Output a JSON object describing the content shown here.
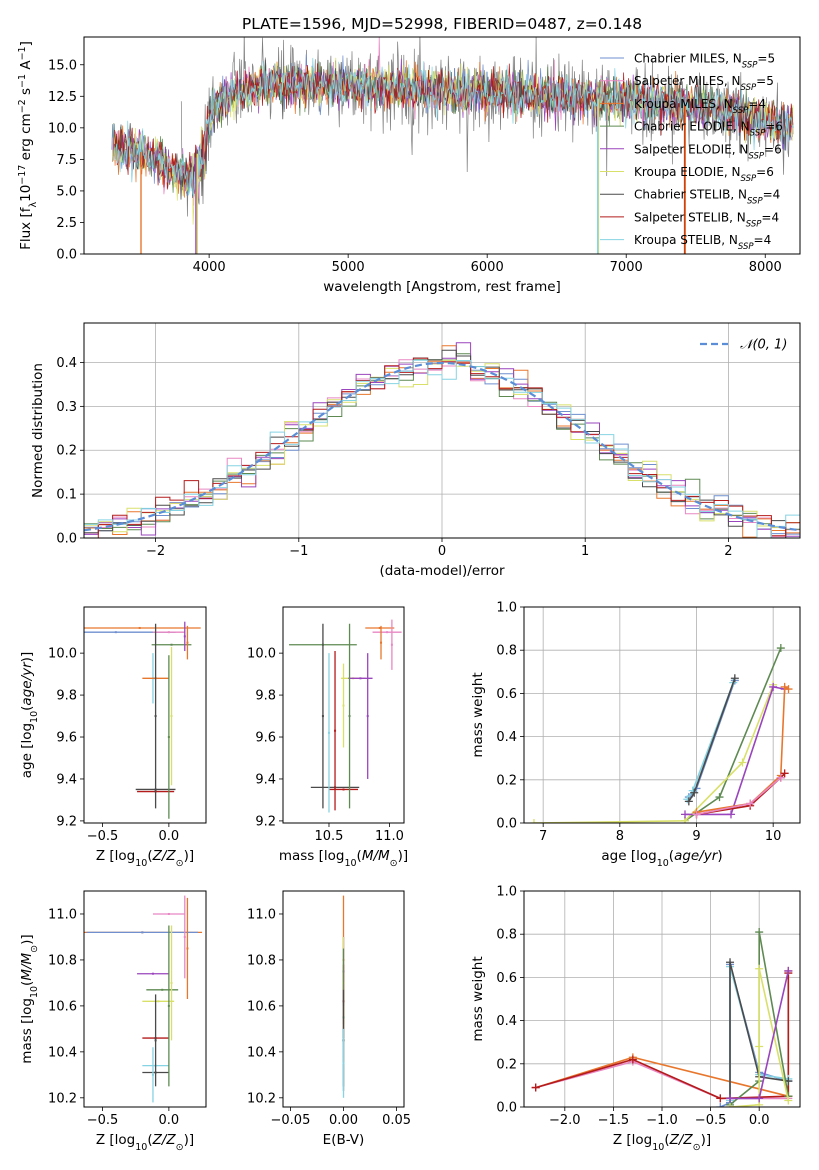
{
  "colors": {
    "Chabrier MILES": "#6f8fcf",
    "Salpeter MILES": "#e887c3",
    "Kroupa MILES": "#e8772e",
    "Chabrier ELODIE": "#5e8a52",
    "Salpeter ELODIE": "#9a44bd",
    "Kroupa ELODIE": "#d9e06a",
    "Chabrier STELIB": "#4a4a4a",
    "Salpeter STELIB": "#b41c1c",
    "Kroupa STELIB": "#86d3e3",
    "data": "#7f7f7f",
    "gaussian": "#5b8ed6"
  },
  "chart_data": [
    {
      "id": "spectrum",
      "type": "line",
      "title": "PLATE=1596, MJD=52998, FIBERID=0487, z=0.148",
      "xlabel": "wavelength [Angstrom, rest frame]",
      "ylabel": "Flux [f",
      "xlim": [
        3100,
        8250
      ],
      "ylim": [
        0,
        17.2
      ],
      "xticks": [
        "4000",
        "5000",
        "6000",
        "7000",
        "8000"
      ],
      "yticks": [
        "0.0",
        "2.5",
        "5.0",
        "7.5",
        "10.0",
        "12.5",
        "15.0"
      ],
      "legend_position": "right",
      "legend": [
        {
          "model": "Chabrier MILES",
          "nssp": "5"
        },
        {
          "model": "Salpeter MILES",
          "nssp": "5"
        },
        {
          "model": "Kroupa MILES",
          "nssp": "4"
        },
        {
          "model": "Chabrier ELODIE",
          "nssp": "6"
        },
        {
          "model": "Salpeter ELODIE",
          "nssp": "6"
        },
        {
          "model": "Kroupa ELODIE",
          "nssp": "6"
        },
        {
          "model": "Chabrier STELIB",
          "nssp": "4"
        },
        {
          "model": "Salpeter STELIB",
          "nssp": "4"
        },
        {
          "model": "Kroupa STELIB",
          "nssp": "4"
        }
      ],
      "continuum": [
        [
          3300,
          8.5
        ],
        [
          3550,
          8.0
        ],
        [
          3700,
          6.8
        ],
        [
          3850,
          6.0
        ],
        [
          3950,
          9.0
        ],
        [
          4050,
          12.0
        ],
        [
          4200,
          12.8
        ],
        [
          4400,
          13.5
        ],
        [
          4700,
          13.5
        ],
        [
          5000,
          13.4
        ],
        [
          5300,
          13.2
        ],
        [
          5600,
          13.0
        ],
        [
          5900,
          12.9
        ],
        [
          6200,
          12.7
        ],
        [
          6500,
          12.5
        ],
        [
          6800,
          12.3
        ],
        [
          7100,
          12.1
        ],
        [
          7400,
          11.8
        ],
        [
          7700,
          11.4
        ],
        [
          8000,
          10.6
        ],
        [
          8200,
          10.0
        ]
      ],
      "model_range": [
        3300,
        8200
      ],
      "data_range": [
        3800,
        8200
      ],
      "cutoff_lines": [
        {
          "model": "Kroupa MILES",
          "x": 3510
        },
        {
          "model": "Salpeter ELODIE",
          "x": 3905
        },
        {
          "model": "Kroupa ELODIE",
          "x": 3915
        },
        {
          "model": "Kroupa ELODIE",
          "x": 6800
        },
        {
          "model": "Kroupa STELIB",
          "x": 6795
        },
        {
          "model": "Salpeter STELIB",
          "x": 7420
        },
        {
          "model": "Kroupa MILES",
          "x": 7425
        }
      ]
    },
    {
      "id": "residuals",
      "type": "line",
      "xlabel": "(data-model)/error",
      "ylabel": "Normed distribution",
      "xlim": [
        -2.5,
        2.5
      ],
      "ylim": [
        0,
        0.49
      ],
      "xticks": [
        "−2",
        "−1",
        "0",
        "1",
        "2"
      ],
      "yticks": [
        "0.0",
        "0.1",
        "0.2",
        "0.3",
        "0.4"
      ],
      "grid": true,
      "legend_position": "top-right",
      "gaussian_label": "𝒩(0, 1)",
      "bins": {
        "start": -2.5,
        "width": 0.1,
        "count": 50
      }
    },
    {
      "id": "age-vs-z",
      "type": "scatter",
      "xlabel": "Z [log",
      "ylabel": "age  [log",
      "xlim": [
        -0.64,
        0.28
      ],
      "ylim": [
        9.19,
        10.22
      ],
      "xticks": [
        "−0.5",
        "0.0"
      ],
      "yticks": [
        "9.2",
        "9.4",
        "9.6",
        "9.8",
        "10.0"
      ],
      "points": [
        {
          "model": "Chabrier MILES",
          "x": -0.4,
          "y": 10.1,
          "xerr": 0.45
        },
        {
          "model": "Salpeter MILES",
          "x": 0.0,
          "y": 10.1,
          "xerr": 0.12
        },
        {
          "model": "Kroupa MILES",
          "x": -0.22,
          "y": 10.12,
          "xerr": 0.46
        },
        {
          "model": "Chabrier ELODIE",
          "x": 0.02,
          "y": 10.04,
          "xerr": 0.15
        },
        {
          "model": "Salpeter ELODIE",
          "x": 0.12,
          "y": 10.08,
          "yerr": 0.07
        },
        {
          "model": "Kroupa ELODIE",
          "x": 0.02,
          "y": 9.7,
          "yerr": 0.33
        },
        {
          "model": "Chabrier STELIB",
          "x": -0.1,
          "y": 9.35,
          "xerr": 0.15
        },
        {
          "model": "Salpeter STELIB",
          "x": -0.1,
          "y": 9.34,
          "xerr": 0.14
        },
        {
          "model": "Kroupa STELIB",
          "x": -0.12,
          "y": 9.88,
          "yerr": 0.12
        },
        {
          "model": "Kroupa MILES",
          "x": -0.1,
          "y": 9.88,
          "xerr": 0.1
        },
        {
          "model": "Kroupa MILES",
          "x": 0.14,
          "y": 10.05,
          "yerr": 0.08
        },
        {
          "model": "Chabrier ELODIE",
          "x": 0.0,
          "y": 9.6,
          "yerr": 0.39
        },
        {
          "model": "Chabrier STELIB",
          "x": -0.1,
          "y": 9.7,
          "yerr": 0.44
        }
      ]
    },
    {
      "id": "age-vs-mass",
      "type": "scatter",
      "xlabel": "mass [log",
      "ylabel": "",
      "xlim": [
        10.12,
        11.12
      ],
      "ylim": [
        9.19,
        10.22
      ],
      "xticks": [
        "10.5",
        "11.0"
      ],
      "yticks": [
        "9.2",
        "9.4",
        "9.6",
        "9.8",
        "10.0"
      ],
      "points": [
        {
          "model": "Chabrier ELODIE",
          "x": 10.45,
          "y": 10.04,
          "xerr": 0.28
        },
        {
          "model": "Kroupa MILES",
          "x": 10.92,
          "y": 10.12,
          "xerr": 0.12
        },
        {
          "model": "Salpeter MILES",
          "x": 10.98,
          "y": 10.1,
          "xerr": 0.12
        },
        {
          "model": "Kroupa MILES",
          "x": 10.93,
          "y": 10.05,
          "yerr": 0.08
        },
        {
          "model": "Salpeter MILES",
          "x": 11.02,
          "y": 10.04,
          "yerr": 0.12
        },
        {
          "model": "Kroupa ELODIE",
          "x": 10.7,
          "y": 9.88,
          "xerr": 0.1
        },
        {
          "model": "Salpeter ELODIE",
          "x": 10.76,
          "y": 9.88,
          "xerr": 0.1
        },
        {
          "model": "Salpeter ELODIE",
          "x": 10.82,
          "y": 9.7,
          "yerr": 0.3
        },
        {
          "model": "Kroupa ELODIE",
          "x": 10.62,
          "y": 9.75,
          "yerr": 0.2
        },
        {
          "model": "Chabrier STELIB",
          "x": 10.55,
          "y": 9.36,
          "xerr": 0.2
        },
        {
          "model": "Salpeter STELIB",
          "x": 10.62,
          "y": 9.35,
          "xerr": 0.12
        },
        {
          "model": "Salpeter STELIB",
          "x": 10.55,
          "y": 9.63,
          "yerr": 0.38
        },
        {
          "model": "Chabrier STELIB",
          "x": 10.45,
          "y": 9.7,
          "yerr": 0.44
        },
        {
          "model": "Kroupa STELIB",
          "x": 10.5,
          "y": 9.62,
          "yerr": 0.38
        },
        {
          "model": "Chabrier ELODIE",
          "x": 10.67,
          "y": 9.7,
          "yerr": 0.44
        }
      ]
    },
    {
      "id": "mass-weight-vs-age",
      "type": "line",
      "xlabel": "age  [log",
      "ylabel": "mass weight",
      "xlim": [
        6.75,
        10.35
      ],
      "ylim": [
        0,
        1
      ],
      "xticks": [
        "7",
        "8",
        "9",
        "10"
      ],
      "yticks": [
        "0.0",
        "0.2",
        "0.4",
        "0.6",
        "0.8",
        "1.0"
      ],
      "grid": true,
      "series": [
        {
          "model": "Chabrier MILES",
          "x": [
            8.9,
            9.0,
            9.5
          ],
          "y": [
            0.12,
            0.16,
            0.66
          ]
        },
        {
          "model": "Kroupa STELIB",
          "x": [
            8.88,
            8.95,
            9.48
          ],
          "y": [
            0.11,
            0.15,
            0.65
          ]
        },
        {
          "model": "Chabrier STELIB",
          "x": [
            8.9,
            8.97,
            9.5
          ],
          "y": [
            0.1,
            0.14,
            0.67
          ]
        },
        {
          "model": "Chabrier ELODIE",
          "x": [
            8.85,
            9.3,
            10.1
          ],
          "y": [
            0.01,
            0.12,
            0.81
          ]
        },
        {
          "model": "Kroupa ELODIE",
          "x": [
            6.88,
            8.85,
            9.6,
            10.0
          ],
          "y": [
            0.0,
            0.01,
            0.28,
            0.64
          ]
        },
        {
          "model": "Salpeter ELODIE",
          "x": [
            8.85,
            9.45,
            10.0,
            10.15
          ],
          "y": [
            0.04,
            0.04,
            0.63,
            0.62
          ]
        },
        {
          "model": "Kroupa MILES",
          "x": [
            9.0,
            9.7,
            10.1,
            10.15,
            10.2
          ],
          "y": [
            0.05,
            0.09,
            0.22,
            0.63,
            0.62
          ]
        },
        {
          "model": "Salpeter STELIB",
          "x": [
            9.0,
            9.7,
            10.1,
            10.15
          ],
          "y": [
            0.04,
            0.08,
            0.21,
            0.23
          ]
        },
        {
          "model": "Salpeter MILES",
          "x": [
            9.0,
            9.7,
            10.1
          ],
          "y": [
            0.04,
            0.09,
            0.21
          ]
        }
      ]
    },
    {
      "id": "mass-vs-z",
      "type": "scatter",
      "xlabel": "Z [log",
      "ylabel": "mass [log",
      "xlim": [
        -0.64,
        0.28
      ],
      "ylim": [
        10.16,
        11.1
      ],
      "xticks": [
        "−0.5",
        "0.0"
      ],
      "yticks": [
        "10.2",
        "10.4",
        "10.6",
        "10.8",
        "11.0"
      ],
      "points": [
        {
          "model": "Kroupa MILES",
          "x": -0.2,
          "y": 10.92,
          "xerr": 0.45
        },
        {
          "model": "Chabrier MILES",
          "x": -0.2,
          "y": 10.92,
          "xerr": 0.42
        },
        {
          "model": "Salpeter MILES",
          "x": 0.0,
          "y": 11.0,
          "xerr": 0.12
        },
        {
          "model": "Salpeter MILES",
          "x": 0.12,
          "y": 10.9,
          "yerr": 0.18
        },
        {
          "model": "Kroupa MILES",
          "x": 0.14,
          "y": 10.85,
          "yerr": 0.22
        },
        {
          "model": "Salpeter ELODIE",
          "x": -0.12,
          "y": 10.74,
          "xerr": 0.12
        },
        {
          "model": "Chabrier ELODIE",
          "x": -0.05,
          "y": 10.67,
          "xerr": 0.12
        },
        {
          "model": "Kroupa ELODIE",
          "x": -0.08,
          "y": 10.62,
          "xerr": 0.12
        },
        {
          "model": "Salpeter STELIB",
          "x": -0.1,
          "y": 10.46,
          "xerr": 0.1
        },
        {
          "model": "Kroupa STELIB",
          "x": -0.1,
          "y": 10.34,
          "xerr": 0.1
        },
        {
          "model": "Chabrier STELIB",
          "x": -0.1,
          "y": 10.31,
          "xerr": 0.1
        },
        {
          "model": "Chabrier ELODIE",
          "x": 0.0,
          "y": 10.6,
          "yerr": 0.35
        },
        {
          "model": "Chabrier STELIB",
          "x": -0.1,
          "y": 10.45,
          "yerr": 0.2
        },
        {
          "model": "Kroupa ELODIE",
          "x": 0.02,
          "y": 10.7,
          "yerr": 0.25
        },
        {
          "model": "Kroupa STELIB",
          "x": -0.12,
          "y": 10.3,
          "yerr": 0.12
        }
      ]
    },
    {
      "id": "mass-vs-ebv",
      "type": "scatter",
      "xlabel": "E(B-V)",
      "ylabel": "",
      "xlim": [
        -0.057,
        0.057
      ],
      "ylim": [
        10.16,
        11.1
      ],
      "xticks": [
        "−0.05",
        "0.00",
        "0.05"
      ],
      "yticks": [
        "10.2",
        "10.4",
        "10.6",
        "10.8",
        "11.0"
      ],
      "points": [
        {
          "model": "Kroupa MILES",
          "x": 0.0,
          "y": 10.8,
          "yerr": 0.28
        },
        {
          "model": "Salpeter ELODIE",
          "x": 0.0,
          "y": 10.75,
          "yerr": 0.15
        },
        {
          "model": "Kroupa ELODIE",
          "x": 0.0,
          "y": 10.7,
          "yerr": 0.2
        },
        {
          "model": "Salpeter STELIB",
          "x": 0.0,
          "y": 10.62,
          "yerr": 0.16
        },
        {
          "model": "Chabrier ELODIE",
          "x": 0.0,
          "y": 10.55,
          "yerr": 0.3
        },
        {
          "model": "Chabrier STELIB",
          "x": 0.0,
          "y": 10.45,
          "yerr": 0.22
        },
        {
          "model": "Kroupa STELIB",
          "x": 0.0,
          "y": 10.35,
          "yerr": 0.15
        }
      ]
    },
    {
      "id": "mass-weight-vs-z",
      "type": "line",
      "xlabel": "Z [log",
      "ylabel": "mass weight",
      "xlim": [
        -2.42,
        0.42
      ],
      "ylim": [
        0,
        1
      ],
      "xticks": [
        "−2.0",
        "−1.5",
        "−1.0",
        "−0.5",
        "0.0"
      ],
      "yticks": [
        "0.0",
        "0.2",
        "0.4",
        "0.6",
        "0.8",
        "1.0"
      ],
      "grid": true,
      "series": [
        {
          "model": "Kroupa MILES",
          "x": [
            -2.3,
            -1.3,
            0.3,
            0.3
          ],
          "y": [
            0.09,
            0.23,
            0.05,
            0.63
          ]
        },
        {
          "model": "Salpeter MILES",
          "x": [
            -2.3,
            -1.3,
            -0.4,
            0.3
          ],
          "y": [
            0.09,
            0.21,
            0.04,
            0.04
          ]
        },
        {
          "model": "Salpeter STELIB",
          "x": [
            -2.3,
            -1.3,
            -0.4,
            0.3,
            0.3
          ],
          "y": [
            0.09,
            0.22,
            0.04,
            0.05,
            0.62
          ]
        },
        {
          "model": "Chabrier MILES",
          "x": [
            -0.4,
            -0.3,
            -0.3,
            0.0,
            0.3
          ],
          "y": [
            0.0,
            0.02,
            0.66,
            0.16,
            0.12
          ]
        },
        {
          "model": "Kroupa STELIB",
          "x": [
            -0.3,
            -0.3,
            0.0,
            0.3
          ],
          "y": [
            0.03,
            0.65,
            0.15,
            0.13
          ]
        },
        {
          "model": "Chabrier STELIB",
          "x": [
            -0.3,
            -0.3,
            0.0,
            0.3
          ],
          "y": [
            0.04,
            0.67,
            0.14,
            0.12
          ]
        },
        {
          "model": "Chabrier ELODIE",
          "x": [
            -0.3,
            0.0,
            0.0,
            0.3
          ],
          "y": [
            0.01,
            0.12,
            0.81,
            0.05
          ]
        },
        {
          "model": "Kroupa ELODIE",
          "x": [
            -0.3,
            0.0,
            0.0,
            0.0,
            0.3
          ],
          "y": [
            0.0,
            0.01,
            0.28,
            0.64,
            0.03
          ]
        },
        {
          "model": "Salpeter ELODIE",
          "x": [
            -0.3,
            0.0,
            0.3
          ],
          "y": [
            0.04,
            0.04,
            0.63
          ]
        }
      ]
    }
  ]
}
